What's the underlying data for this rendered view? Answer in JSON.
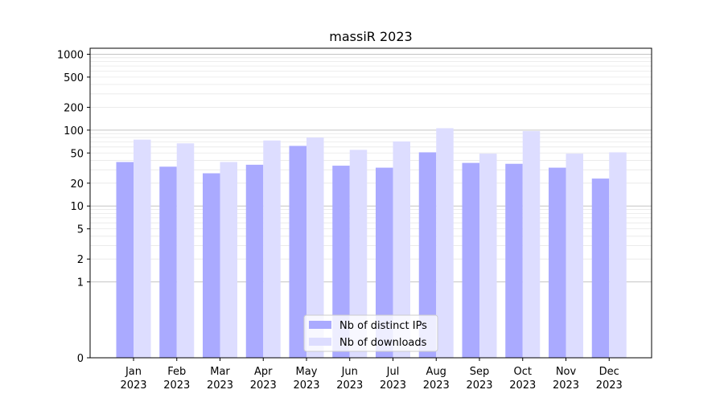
{
  "chart_data": {
    "type": "bar",
    "title": "massiR 2023",
    "xlabel": "",
    "ylabel": "",
    "y_scale": "symlog",
    "ylim": [
      0,
      1200
    ],
    "categories": [
      [
        "Jan",
        "2023"
      ],
      [
        "Feb",
        "2023"
      ],
      [
        "Mar",
        "2023"
      ],
      [
        "Apr",
        "2023"
      ],
      [
        "May",
        "2023"
      ],
      [
        "Jun",
        "2023"
      ],
      [
        "Jul",
        "2023"
      ],
      [
        "Aug",
        "2023"
      ],
      [
        "Sep",
        "2023"
      ],
      [
        "Oct",
        "2023"
      ],
      [
        "Nov",
        "2023"
      ],
      [
        "Dec",
        "2023"
      ]
    ],
    "y_ticks": [
      0,
      1,
      2,
      5,
      10,
      20,
      50,
      100,
      200,
      500,
      1000
    ],
    "y_tick_labels": [
      "0",
      "1",
      "2",
      "5",
      "10",
      "20",
      "50",
      "100",
      "200",
      "500",
      "1000"
    ],
    "series": [
      {
        "name": "Nb of distinct IPs",
        "color": "#aaaaff",
        "values": [
          38,
          33,
          27,
          35,
          62,
          34,
          32,
          51,
          37,
          36,
          32,
          23
        ]
      },
      {
        "name": "Nb of downloads",
        "color": "#ddddff",
        "values": [
          75,
          67,
          38,
          73,
          80,
          55,
          71,
          106,
          49,
          97,
          49,
          51
        ]
      }
    ],
    "grid": "horizontal",
    "legend_position": "lower-center"
  }
}
